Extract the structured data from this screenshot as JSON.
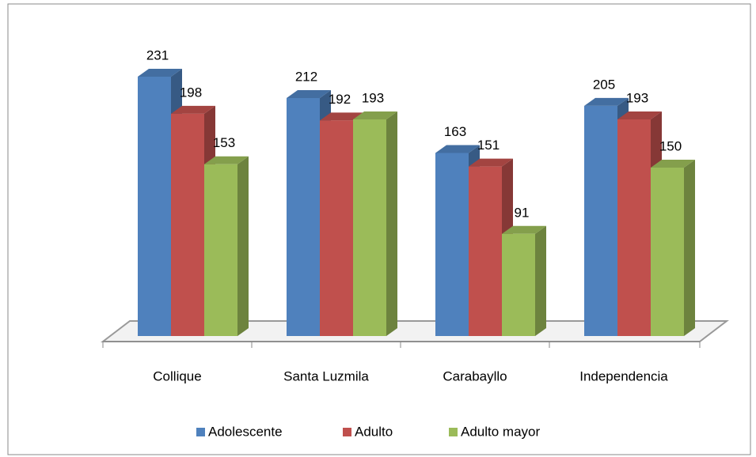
{
  "chart_data": {
    "type": "bar3d",
    "categories": [
      "Collique",
      "Santa Luzmila",
      "Carabayllo",
      "Independencia"
    ],
    "series": [
      {
        "name": "Adolescente",
        "color": "#4F81BD",
        "values": [
          231,
          212,
          163,
          205
        ]
      },
      {
        "name": "Adulto",
        "color": "#C0504D",
        "values": [
          198,
          192,
          151,
          193
        ]
      },
      {
        "name": "Adulto mayor",
        "color": "#9BBB59",
        "values": [
          153,
          193,
          91,
          150
        ]
      }
    ],
    "legend": "bottom"
  }
}
